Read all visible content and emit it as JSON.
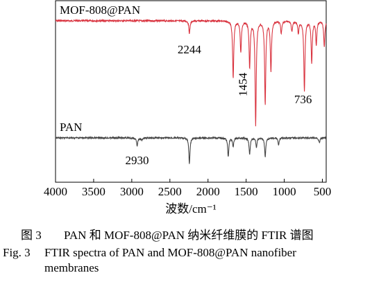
{
  "chart_data": {
    "type": "line",
    "title": "",
    "xlabel": "波数/cm⁻¹",
    "ylabel": "",
    "xlim": [
      4000,
      450
    ],
    "x_reversed": true,
    "x_ticks": [
      4000,
      3500,
      3000,
      2500,
      2000,
      1500,
      1000,
      500
    ],
    "x_tick_labels": [
      "4000",
      "3500",
      "3000",
      "2500",
      "2000",
      "1500",
      "1000",
      "500"
    ],
    "y_ticks_shown": false,
    "grid": false,
    "series": [
      {
        "name": "MOF-808@PAN",
        "color": "#d9333f",
        "baseline_transmittance": 0.93,
        "bands": [
          {
            "wavenumber": 2244,
            "depth": 0.12,
            "label": "2244"
          },
          {
            "wavenumber": 1670,
            "depth": 0.55
          },
          {
            "wavenumber": 1570,
            "depth": 0.3
          },
          {
            "wavenumber": 1454,
            "depth": 0.45,
            "label": "1454"
          },
          {
            "wavenumber": 1375,
            "depth": 1.0
          },
          {
            "wavenumber": 1250,
            "depth": 0.8
          },
          {
            "wavenumber": 1175,
            "depth": 0.48
          },
          {
            "wavenumber": 1040,
            "depth": 0.12
          },
          {
            "wavenumber": 900,
            "depth": 0.1
          },
          {
            "wavenumber": 815,
            "depth": 0.12
          },
          {
            "wavenumber": 736,
            "depth": 0.68,
            "label": "736"
          },
          {
            "wavenumber": 640,
            "depth": 0.4
          },
          {
            "wavenumber": 580,
            "depth": 0.22
          },
          {
            "wavenumber": 475,
            "depth": 0.25
          }
        ]
      },
      {
        "name": "PAN",
        "color": "#444444",
        "baseline_transmittance": 0.93,
        "bands": [
          {
            "wavenumber": 2930,
            "depth": 0.2,
            "label": "2930"
          },
          {
            "wavenumber": 2870,
            "depth": 0.06
          },
          {
            "wavenumber": 2244,
            "depth": 0.62
          },
          {
            "wavenumber": 1735,
            "depth": 0.45
          },
          {
            "wavenumber": 1670,
            "depth": 0.2
          },
          {
            "wavenumber": 1454,
            "depth": 0.4
          },
          {
            "wavenumber": 1365,
            "depth": 0.22
          },
          {
            "wavenumber": 1250,
            "depth": 0.45
          },
          {
            "wavenumber": 1075,
            "depth": 0.16
          },
          {
            "wavenumber": 540,
            "depth": 0.12
          }
        ]
      }
    ]
  },
  "caption": {
    "cn_num": "图 3",
    "cn_text": "PAN 和 MOF-808@PAN 纳米纤维膜的 FTIR 谱图",
    "en_num": "Fig. 3",
    "en_text_line1": "FTIR spectra of PAN and MOF-808@PAN nanofiber",
    "en_text_line2": "membranes"
  }
}
